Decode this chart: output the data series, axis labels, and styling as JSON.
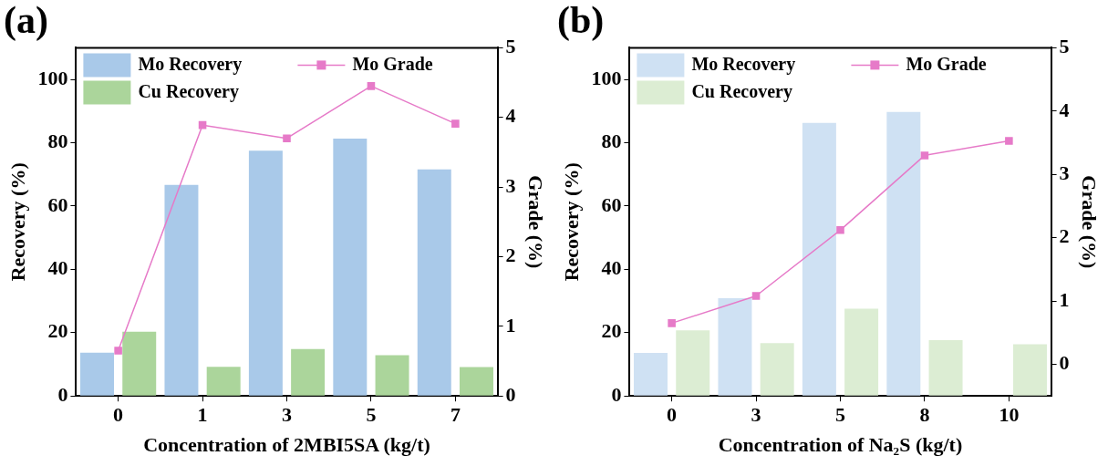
{
  "chart_data": [
    {
      "type": "bar",
      "title": "(a)",
      "xlabel": "Concentration of 2MBI5SA (kg/t)",
      "ylabel": "Recovery (%)",
      "y2label": "Grade (%)",
      "categories": [
        "0",
        "1",
        "3",
        "5",
        "7"
      ],
      "series": [
        {
          "name": "Mo Recovery",
          "color": "#a9c9e9",
          "values": [
            13.7,
            66.7,
            77.5,
            81.3,
            71.6
          ]
        },
        {
          "name": "Cu Recovery",
          "color": "#abd59b",
          "values": [
            20.3,
            9.2,
            14.8,
            12.9,
            9.1
          ]
        },
        {
          "name": "Mo Grade",
          "type": "line",
          "axis": "y2",
          "color": "#e67ac8",
          "values": [
            0.65,
            3.89,
            3.7,
            4.45,
            3.91
          ]
        }
      ],
      "ylim": [
        0,
        110
      ],
      "yticks": [
        0,
        20,
        40,
        60,
        80,
        100
      ],
      "y2lim": [
        0,
        5
      ],
      "y2ticks": [
        0,
        1,
        2,
        3,
        4,
        5
      ],
      "marker": "square",
      "legend": "top left"
    },
    {
      "type": "bar",
      "title": "(b)",
      "xlabel": "Concentration of Na₂S (kg/t)",
      "ylabel": "Recovery (%)",
      "y2label": "Grade (%)",
      "categories": [
        "0",
        "3",
        "5",
        "8",
        "10"
      ],
      "series": [
        {
          "name": "Mo Recovery",
          "color": "#cfe1f3",
          "values": [
            13.6,
            30.9,
            86.3,
            89.7,
            null
          ]
        },
        {
          "name": "Cu Recovery",
          "color": "#dcedd3",
          "values": [
            20.7,
            16.7,
            27.6,
            17.6,
            16.3
          ]
        },
        {
          "name": "Mo Grade",
          "type": "line",
          "axis": "y2",
          "color": "#e67ac8",
          "values": [
            0.65,
            1.08,
            2.12,
            3.3,
            3.53
          ]
        }
      ],
      "ylim": [
        0,
        110
      ],
      "yticks": [
        0,
        20,
        40,
        60,
        80,
        100
      ],
      "y2lim": [
        -0.5,
        5
      ],
      "y2ticks": [
        0,
        1,
        2,
        3,
        4,
        5
      ],
      "marker": "square",
      "legend": "top left"
    }
  ]
}
